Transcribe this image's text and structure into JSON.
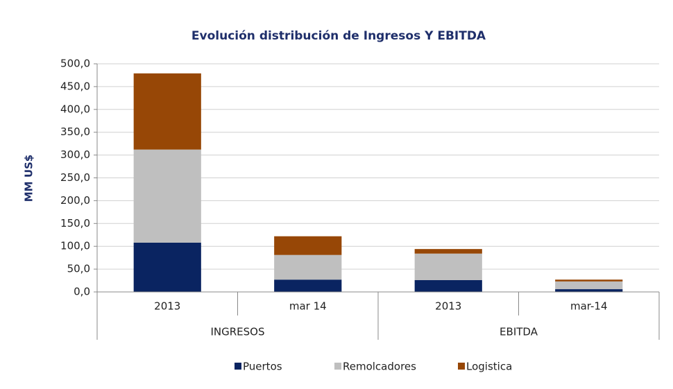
{
  "chart_data": {
    "type": "stacked_bar",
    "title": "Evolución distribución de Ingresos Y EBITDA",
    "ylabel": "MM US$",
    "category_groups": [
      {
        "label": "INGRESOS",
        "categories": [
          "2013",
          "mar 14"
        ]
      },
      {
        "label": "EBITDA",
        "categories": [
          "2013",
          "mar-14"
        ]
      }
    ],
    "series": [
      {
        "name": "Puertos",
        "color": "#0a2461",
        "values": [
          108,
          27,
          26,
          6
        ]
      },
      {
        "name": "Remolcadores",
        "color": "#bfbfbf",
        "values": [
          204,
          54,
          58,
          17
        ]
      },
      {
        "name": "Logistica",
        "color": "#974706",
        "values": [
          167,
          41,
          10,
          4
        ]
      }
    ],
    "ylim": [
      0,
      500
    ],
    "yticks": [
      {
        "value": 0,
        "label": "0,0"
      },
      {
        "value": 50,
        "label": "50,0"
      },
      {
        "value": 100,
        "label": "100,0"
      },
      {
        "value": 150,
        "label": "150,0"
      },
      {
        "value": 200,
        "label": "200,0"
      },
      {
        "value": 250,
        "label": "250,0"
      },
      {
        "value": 300,
        "label": "300,0"
      },
      {
        "value": 350,
        "label": "350,0"
      },
      {
        "value": 400,
        "label": "400,0"
      },
      {
        "value": 450,
        "label": "450,0"
      },
      {
        "value": 500,
        "label": "500,0"
      }
    ],
    "grid": true,
    "legend": "bottom"
  }
}
